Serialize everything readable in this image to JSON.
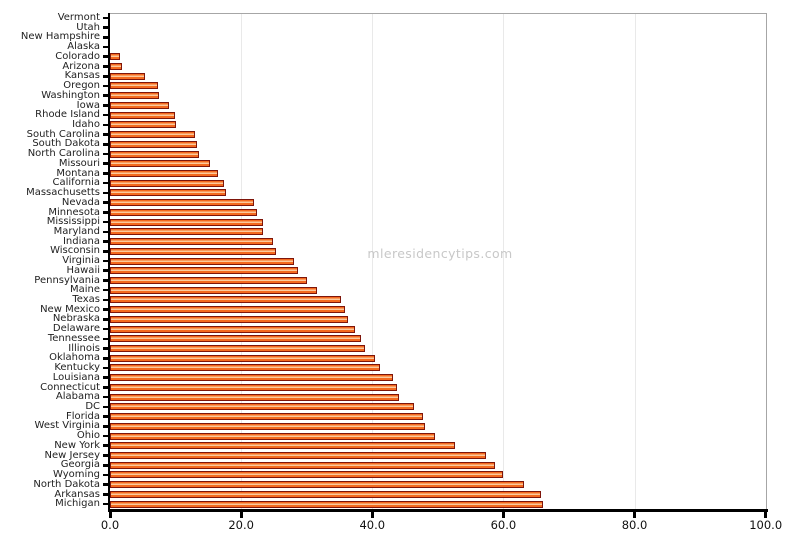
{
  "watermark": "mleresidencytips.com",
  "chart_data": {
    "type": "bar",
    "orientation": "horizontal",
    "title": "",
    "xlabel": "",
    "ylabel": "",
    "xlim": [
      0,
      100
    ],
    "grid": "vertical-light",
    "gridline_values": [
      20,
      40,
      60,
      80
    ],
    "x_tick_values": [
      0,
      20,
      40,
      60,
      80,
      100
    ],
    "x_tick_labels": [
      "0.0",
      "20.0",
      "40.0",
      "60.0",
      "80.0",
      "100.0"
    ],
    "legend": "none",
    "categories": [
      "Vermont",
      "Utah",
      "New Hampshire",
      "Alaska",
      "Colorado",
      "Arizona",
      "Kansas",
      "Oregon",
      "Washington",
      "Iowa",
      "Rhode Island",
      "Idaho",
      "South Carolina",
      "South Dakota",
      "North Carolina",
      "Missouri",
      "Montana",
      "California",
      "Massachusetts",
      "Nevada",
      "Minnesota",
      "Mississippi",
      "Maryland",
      "Indiana",
      "Wisconsin",
      "Virginia",
      "Hawaii",
      "Pennsylvania",
      "Maine",
      "Texas",
      "New Mexico",
      "Nebraska",
      "Delaware",
      "Tennessee",
      "Illinois",
      "Oklahoma",
      "Kentucky",
      "Louisiana",
      "Connecticut",
      "Alabama",
      "DC",
      "Florida",
      "West Virginia",
      "Ohio",
      "New York",
      "New Jersey",
      "Georgia",
      "Wyoming",
      "North Dakota",
      "Arkansas",
      "Michigan"
    ],
    "values": [
      0.0,
      0.0,
      0.0,
      0.0,
      1.5,
      1.9,
      5.3,
      7.3,
      7.5,
      9.0,
      9.9,
      10.0,
      13.0,
      13.2,
      13.6,
      15.2,
      16.5,
      17.4,
      17.7,
      22.0,
      22.4,
      23.4,
      23.4,
      24.9,
      25.3,
      28.0,
      28.6,
      30.0,
      31.6,
      35.2,
      35.8,
      36.3,
      37.4,
      38.3,
      38.9,
      40.4,
      41.2,
      43.2,
      43.7,
      44.0,
      46.3,
      47.8,
      48.0,
      49.6,
      52.6,
      57.4,
      58.7,
      60.0,
      63.2,
      65.7,
      66.0
    ],
    "colors": {
      "bar_fill": "#f4691e",
      "bar_highlight": "#fbc99b",
      "bar_border": "#7e150a",
      "axis": "#000000",
      "spine_gray": "#a6a6a6",
      "gridline": "#e9e9e9",
      "category_label_text": "#222222",
      "tick_label_text": "#111111",
      "watermark_text": "#c8c8c8",
      "background": "#ffffff"
    }
  }
}
